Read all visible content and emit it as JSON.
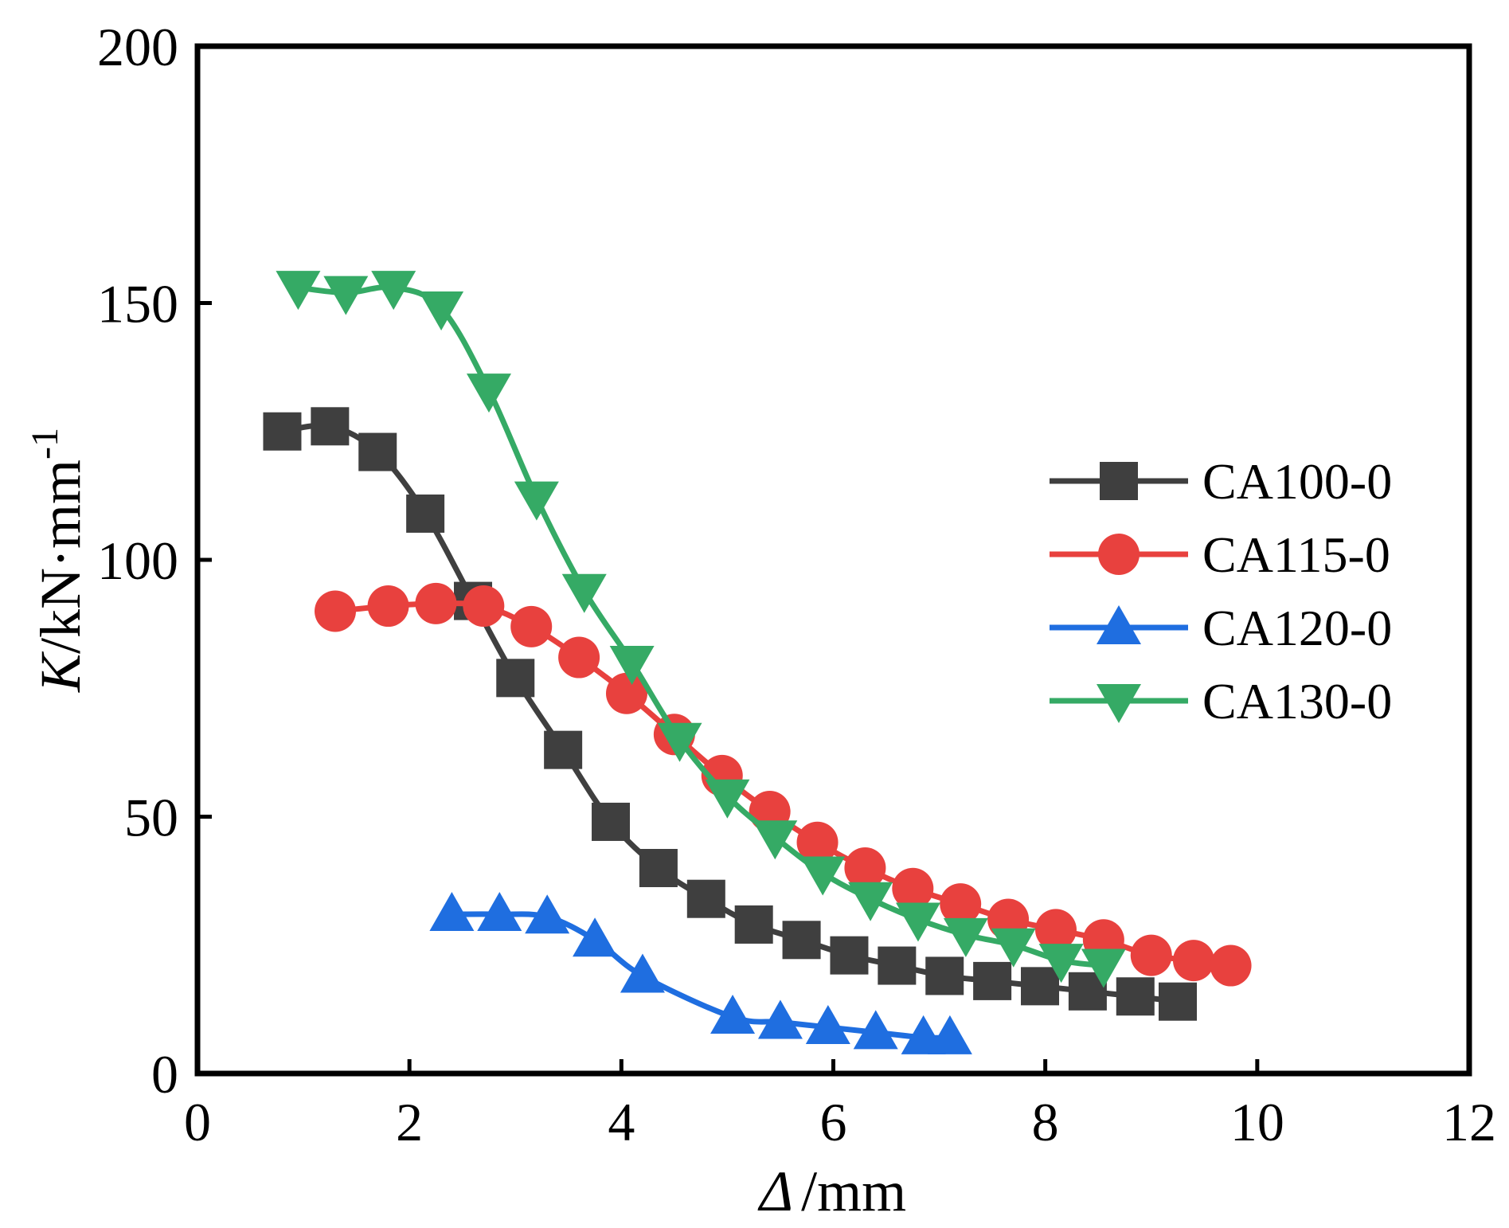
{
  "chart_data": {
    "type": "line",
    "title": "",
    "xlabel": {
      "symbol": "Δ",
      "unit": "/mm"
    },
    "ylabel": {
      "symbol": "K",
      "unit": "/kN·mm",
      "superscript": "-1"
    },
    "xlim": [
      0,
      12
    ],
    "ylim": [
      0,
      200
    ],
    "xticks": [
      0,
      2,
      4,
      6,
      8,
      10,
      12
    ],
    "yticks": [
      0,
      50,
      100,
      150,
      200
    ],
    "xtick_labels": [
      "0",
      "2",
      "4",
      "6",
      "8",
      "10",
      "12"
    ],
    "ytick_labels": [
      "0",
      "50",
      "100",
      "150",
      "200"
    ],
    "grid": false,
    "legend_position": "right-middle",
    "series": [
      {
        "name": "CA100-0",
        "color": "#3f3f3f",
        "marker": "square",
        "x": [
          0.8,
          1.25,
          1.7,
          2.15,
          2.6,
          3.0,
          3.45,
          3.9,
          4.35,
          4.8,
          5.25,
          5.7,
          6.15,
          6.6,
          7.05,
          7.5,
          7.95,
          8.4,
          8.85,
          9.25
        ],
        "y": [
          125,
          126,
          121,
          109,
          92,
          77,
          63,
          49,
          40,
          34,
          29,
          26,
          23,
          21,
          19,
          18,
          17,
          16,
          15,
          14
        ]
      },
      {
        "name": "CA115-0",
        "color": "#e8413e",
        "marker": "circle",
        "x": [
          1.3,
          1.8,
          2.25,
          2.7,
          3.15,
          3.6,
          4.05,
          4.5,
          4.95,
          5.4,
          5.85,
          6.3,
          6.75,
          7.2,
          7.65,
          8.1,
          8.55,
          9.0,
          9.4,
          9.75
        ],
        "y": [
          90,
          91,
          91.5,
          91,
          87,
          81,
          74,
          66,
          58,
          51,
          45,
          40,
          36,
          33,
          30,
          28,
          26,
          23,
          22,
          21
        ]
      },
      {
        "name": "CA120-0",
        "color": "#1f6ee0",
        "marker": "triangle-up",
        "x": [
          2.4,
          2.85,
          3.3,
          3.75,
          4.2,
          5.05,
          5.5,
          5.95,
          6.4,
          6.85,
          7.1
        ],
        "y": [
          31,
          31,
          30.5,
          26,
          19,
          11,
          10,
          9,
          8,
          7,
          7
        ]
      },
      {
        "name": "CA130-0",
        "color": "#35aa65",
        "marker": "triangle-down",
        "x": [
          0.95,
          1.4,
          1.85,
          2.3,
          2.75,
          3.2,
          3.65,
          4.1,
          4.55,
          5.0,
          5.45,
          5.9,
          6.35,
          6.8,
          7.25,
          7.7,
          8.15,
          8.55
        ],
        "y": [
          153,
          152,
          153,
          149,
          133,
          112,
          94,
          80,
          65,
          54,
          46,
          39,
          34,
          30,
          27,
          25,
          22,
          21
        ]
      }
    ]
  }
}
